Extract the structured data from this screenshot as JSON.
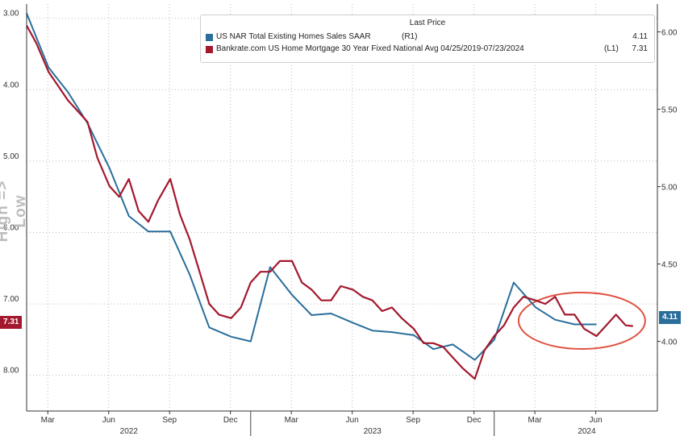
{
  "chart_data": {
    "type": "line",
    "title": "",
    "left_axis": {
      "inverted": true,
      "ylim": [
        8.5,
        2.8
      ],
      "ticks": [
        "3.00",
        "4.00",
        "5.00",
        "6.00",
        "7.00",
        "8.00"
      ],
      "label": "High => Low"
    },
    "right_axis": {
      "ylim": [
        3.55,
        6.18
      ],
      "ticks": [
        "4.00",
        "4.50",
        "5.00",
        "5.50",
        "6.00"
      ]
    },
    "x_axis": {
      "range": [
        2022.08,
        2024.67
      ],
      "month_ticks": [
        {
          "label": "Mar",
          "x": 2022.167
        },
        {
          "label": "Jun",
          "x": 2022.417
        },
        {
          "label": "Sep",
          "x": 2022.667
        },
        {
          "label": "Dec",
          "x": 2022.917
        },
        {
          "label": "Mar",
          "x": 2023.167
        },
        {
          "label": "Jun",
          "x": 2023.417
        },
        {
          "label": "Sep",
          "x": 2023.667
        },
        {
          "label": "Dec",
          "x": 2023.917
        },
        {
          "label": "Mar",
          "x": 2024.167
        },
        {
          "label": "Jun",
          "x": 2024.417
        }
      ],
      "year_ticks": [
        {
          "label": "2022",
          "x": 2022.5
        },
        {
          "label": "2023",
          "x": 2023.5
        },
        {
          "label": "2024",
          "x": 2024.38
        }
      ],
      "year_separators": [
        2023.0,
        2024.0
      ]
    },
    "legend": {
      "title": "Last Price",
      "placement": "top-right"
    },
    "series": [
      {
        "name": "US NAR Total Existing Homes Sales SAAR",
        "axis_tag": "(R1)",
        "last_value": "4.11",
        "color": "#2a6e9b",
        "axis": "right",
        "x": [
          2022.08,
          2022.17,
          2022.25,
          2022.33,
          2022.42,
          2022.5,
          2022.58,
          2022.67,
          2022.75,
          2022.83,
          2022.92,
          2023.0,
          2023.08,
          2023.17,
          2023.25,
          2023.33,
          2023.42,
          2023.5,
          2023.58,
          2023.67,
          2023.75,
          2023.83,
          2023.92,
          2024.0,
          2024.08,
          2024.17,
          2024.25,
          2024.33,
          2024.42
        ],
        "values": [
          6.12,
          5.77,
          5.61,
          5.41,
          5.12,
          4.81,
          4.71,
          4.71,
          4.43,
          4.09,
          4.03,
          4.0,
          4.48,
          4.3,
          4.17,
          4.18,
          4.12,
          4.07,
          4.06,
          4.04,
          3.95,
          3.98,
          3.88,
          4.01,
          4.38,
          4.22,
          4.14,
          4.11,
          4.11
        ]
      },
      {
        "name": "Bankrate.com US Home Mortgage 30 Year Fixed National Avg 04/25/2019-07/23/2024",
        "axis_tag": "(L1)",
        "last_value": "7.31",
        "color": "#a3182d",
        "axis": "left",
        "x": [
          2022.08,
          2022.12,
          2022.17,
          2022.21,
          2022.25,
          2022.29,
          2022.33,
          2022.37,
          2022.42,
          2022.46,
          2022.5,
          2022.54,
          2022.58,
          2022.62,
          2022.67,
          2022.71,
          2022.75,
          2022.79,
          2022.83,
          2022.87,
          2022.92,
          2022.96,
          2023.0,
          2023.04,
          2023.08,
          2023.12,
          2023.17,
          2023.21,
          2023.25,
          2023.29,
          2023.33,
          2023.37,
          2023.42,
          2023.46,
          2023.5,
          2023.54,
          2023.58,
          2023.62,
          2023.67,
          2023.71,
          2023.75,
          2023.79,
          2023.83,
          2023.87,
          2023.92,
          2023.96,
          2024.0,
          2024.04,
          2024.08,
          2024.12,
          2024.17,
          2024.21,
          2024.25,
          2024.29,
          2024.33,
          2024.37,
          2024.42,
          2024.46,
          2024.5,
          2024.54,
          2024.57
        ],
        "values": [
          3.1,
          3.35,
          3.75,
          3.95,
          4.15,
          4.3,
          4.45,
          4.95,
          5.35,
          5.5,
          5.25,
          5.7,
          5.85,
          5.55,
          5.25,
          5.75,
          6.1,
          6.55,
          7.0,
          7.15,
          7.2,
          7.05,
          6.7,
          6.55,
          6.55,
          6.4,
          6.4,
          6.7,
          6.8,
          6.95,
          6.95,
          6.75,
          6.8,
          6.9,
          6.95,
          7.1,
          7.05,
          7.2,
          7.35,
          7.55,
          7.55,
          7.6,
          7.75,
          7.9,
          8.05,
          7.65,
          7.45,
          7.3,
          7.05,
          6.9,
          6.95,
          7.0,
          6.9,
          7.15,
          7.15,
          7.35,
          7.45,
          7.3,
          7.15,
          7.3,
          7.31
        ]
      }
    ],
    "annotations": [
      {
        "type": "ellipse",
        "color": "#e05040",
        "around": "latest values, Apr-Jul 2024",
        "x_range": [
          2024.1,
          2024.62
        ]
      }
    ]
  }
}
